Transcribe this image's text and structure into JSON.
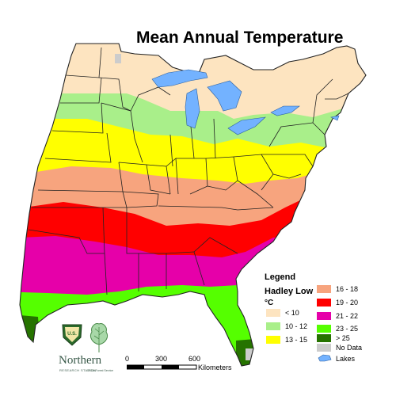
{
  "title": "Mean Annual Temperature",
  "legend": {
    "heading": "Legend",
    "subheading": "Hadley Low",
    "unit": "°C",
    "classes": [
      {
        "label": "< 10",
        "color": "#fde4c0"
      },
      {
        "label": "10 - 12",
        "color": "#a9ef8a"
      },
      {
        "label": "13 - 15",
        "color": "#ffff00"
      },
      {
        "label": "16 - 18",
        "color": "#f7a47e"
      },
      {
        "label": "19 - 20",
        "color": "#ff0000"
      },
      {
        "label": "21 - 22",
        "color": "#e600a9"
      },
      {
        "label": "23 - 25",
        "color": "#55ff00"
      },
      {
        "label": "> 25",
        "color": "#267300"
      },
      {
        "label": "No Data",
        "color": "#cccccc"
      },
      {
        "label": "Lakes",
        "color": "#73b2ff"
      }
    ]
  },
  "scale": {
    "ticks": [
      "0",
      "300",
      "600"
    ],
    "unit": "Kilometers"
  },
  "branding": {
    "name": "Northern",
    "subtitle": "RESEARCH STATION",
    "agency": "USDA Forest Service",
    "shield_text": "U.S."
  }
}
